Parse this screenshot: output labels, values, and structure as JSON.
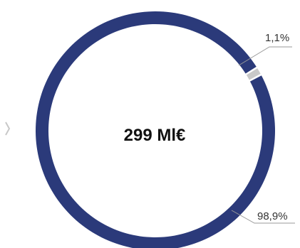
{
  "chart_data": {
    "type": "pie",
    "center_label": "299 Ml€",
    "slices": [
      {
        "label": "98,9%",
        "value": 98.9,
        "color": "#2B3A7A"
      },
      {
        "label": "1,1%",
        "value": 1.1,
        "color": "#C9C9C9"
      }
    ]
  }
}
